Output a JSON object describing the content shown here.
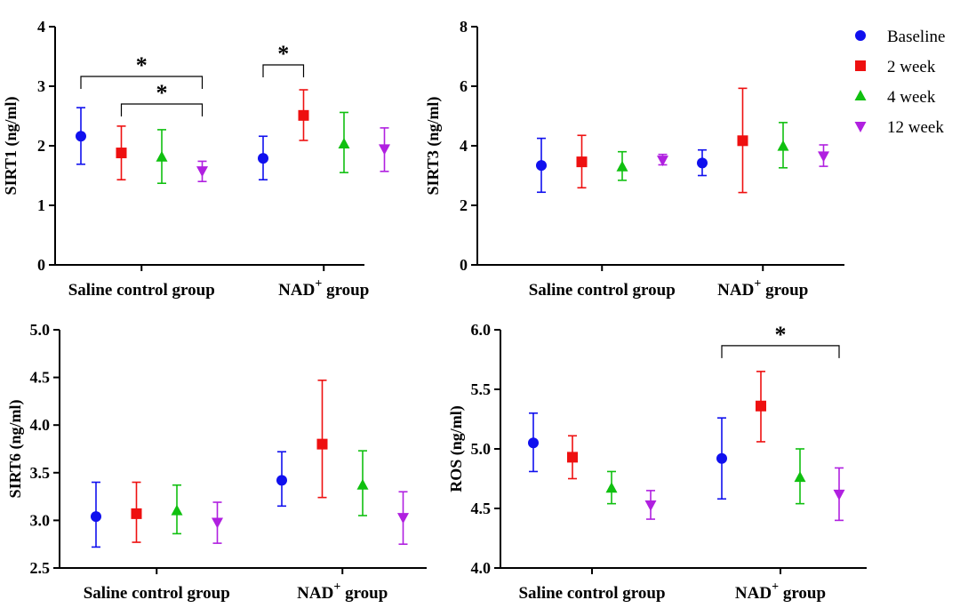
{
  "legend": {
    "entries": [
      {
        "name": "Baseline",
        "color": "#1010ee",
        "marker": "circle"
      },
      {
        "name": "2 week",
        "color": "#ee1010",
        "marker": "square"
      },
      {
        "name": "4 week",
        "color": "#10c010",
        "marker": "triangle-up"
      },
      {
        "name": "12 week",
        "color": "#b020e0",
        "marker": "triangle-down"
      }
    ]
  },
  "chart_data": [
    {
      "type": "scatter",
      "ylabel": "SIRT1 (ng/ml)",
      "ylim": [
        0,
        4
      ],
      "yticks": [
        "0",
        "1",
        "2",
        "3",
        "4"
      ],
      "categories": [
        "Saline control group",
        "NAD+ group"
      ],
      "category_labels": [
        {
          "text": "Saline control group",
          "sup": ""
        },
        {
          "text": "NAD",
          "sup": "+",
          "suffix": " group"
        }
      ],
      "series": [
        {
          "name": "Baseline",
          "values": [
            2.16,
            1.79
          ],
          "err_low": [
            1.69,
            1.43
          ],
          "err_high": [
            2.64,
            2.16
          ]
        },
        {
          "name": "2 week",
          "values": [
            1.88,
            2.51
          ],
          "err_low": [
            1.43,
            2.09
          ],
          "err_high": [
            2.33,
            2.94
          ]
        },
        {
          "name": "4 week",
          "values": [
            1.81,
            2.03
          ],
          "err_low": [
            1.37,
            1.55
          ],
          "err_high": [
            2.27,
            2.56
          ]
        },
        {
          "name": "12 week",
          "values": [
            1.58,
            1.95
          ],
          "err_low": [
            1.4,
            1.57
          ],
          "err_high": [
            1.74,
            2.3
          ]
        }
      ],
      "significance": [
        {
          "from": [
            0,
            0
          ],
          "to": [
            0,
            3
          ],
          "label": "*"
        },
        {
          "from": [
            0,
            1
          ],
          "to": [
            0,
            3
          ],
          "label": "*"
        },
        {
          "from": [
            1,
            0
          ],
          "to": [
            1,
            1
          ],
          "label": "*"
        }
      ]
    },
    {
      "type": "scatter",
      "ylabel": "SIRT3 (ng/ml)",
      "ylim": [
        0,
        8
      ],
      "yticks": [
        "0",
        "2",
        "4",
        "6",
        "8"
      ],
      "categories": [
        "Saline control group",
        "NAD+ group"
      ],
      "category_labels": [
        {
          "text": "Saline control group",
          "sup": ""
        },
        {
          "text": "NAD",
          "sup": "+",
          "suffix": " group"
        }
      ],
      "series": [
        {
          "name": "Baseline",
          "values": [
            3.34,
            3.42
          ],
          "err_low": [
            2.44,
            3.0
          ],
          "err_high": [
            4.25,
            3.86
          ]
        },
        {
          "name": "2 week",
          "values": [
            3.46,
            4.17
          ],
          "err_low": [
            2.59,
            2.43
          ],
          "err_high": [
            4.35,
            5.93
          ]
        },
        {
          "name": "4 week",
          "values": [
            3.29,
            3.98
          ],
          "err_low": [
            2.84,
            3.26
          ],
          "err_high": [
            3.8,
            4.78
          ]
        },
        {
          "name": "12 week",
          "values": [
            3.52,
            3.66
          ],
          "err_low": [
            3.36,
            3.31
          ],
          "err_high": [
            3.71,
            4.03
          ]
        }
      ],
      "significance": []
    },
    {
      "type": "scatter",
      "ylabel": "SIRT6 (ng/ml)",
      "ylim": [
        2.5,
        5.0
      ],
      "yticks": [
        "2.5",
        "3.0",
        "3.5",
        "4.0",
        "4.5",
        "5.0"
      ],
      "categories": [
        "Saline control group",
        "NAD+ group"
      ],
      "category_labels": [
        {
          "text": "Saline control group",
          "sup": ""
        },
        {
          "text": "NAD",
          "sup": "+",
          "suffix": " group"
        }
      ],
      "series": [
        {
          "name": "Baseline",
          "values": [
            3.04,
            3.42
          ],
          "err_low": [
            2.72,
            3.15
          ],
          "err_high": [
            3.4,
            3.72
          ]
        },
        {
          "name": "2 week",
          "values": [
            3.07,
            3.8
          ],
          "err_low": [
            2.77,
            3.24
          ],
          "err_high": [
            3.4,
            4.47
          ]
        },
        {
          "name": "4 week",
          "values": [
            3.1,
            3.37
          ],
          "err_low": [
            2.86,
            3.05
          ],
          "err_high": [
            3.37,
            3.73
          ]
        },
        {
          "name": "12 week",
          "values": [
            2.98,
            3.03
          ],
          "err_low": [
            2.76,
            2.75
          ],
          "err_high": [
            3.19,
            3.3
          ]
        }
      ],
      "significance": []
    },
    {
      "type": "scatter",
      "ylabel": "ROS (ng/ml)",
      "ylim": [
        4.0,
        6.0
      ],
      "yticks": [
        "4.0",
        "4.5",
        "5.0",
        "5.5",
        "6.0"
      ],
      "categories": [
        "Saline control group",
        "NAD+ group"
      ],
      "category_labels": [
        {
          "text": "Saline control group",
          "sup": ""
        },
        {
          "text": "NAD",
          "sup": "+",
          "suffix": " group"
        }
      ],
      "series": [
        {
          "name": "Baseline",
          "values": [
            5.05,
            4.92
          ],
          "err_low": [
            4.81,
            4.58
          ],
          "err_high": [
            5.3,
            5.26
          ]
        },
        {
          "name": "2 week",
          "values": [
            4.93,
            5.36
          ],
          "err_low": [
            4.75,
            5.06
          ],
          "err_high": [
            5.11,
            5.65
          ]
        },
        {
          "name": "4 week",
          "values": [
            4.67,
            4.76
          ],
          "err_low": [
            4.54,
            4.54
          ],
          "err_high": [
            4.81,
            5.0
          ]
        },
        {
          "name": "12 week",
          "values": [
            4.53,
            4.62
          ],
          "err_low": [
            4.41,
            4.4
          ],
          "err_high": [
            4.65,
            4.84
          ]
        }
      ],
      "significance": [
        {
          "from": [
            1,
            0
          ],
          "to": [
            1,
            3
          ],
          "label": "*"
        }
      ]
    }
  ]
}
